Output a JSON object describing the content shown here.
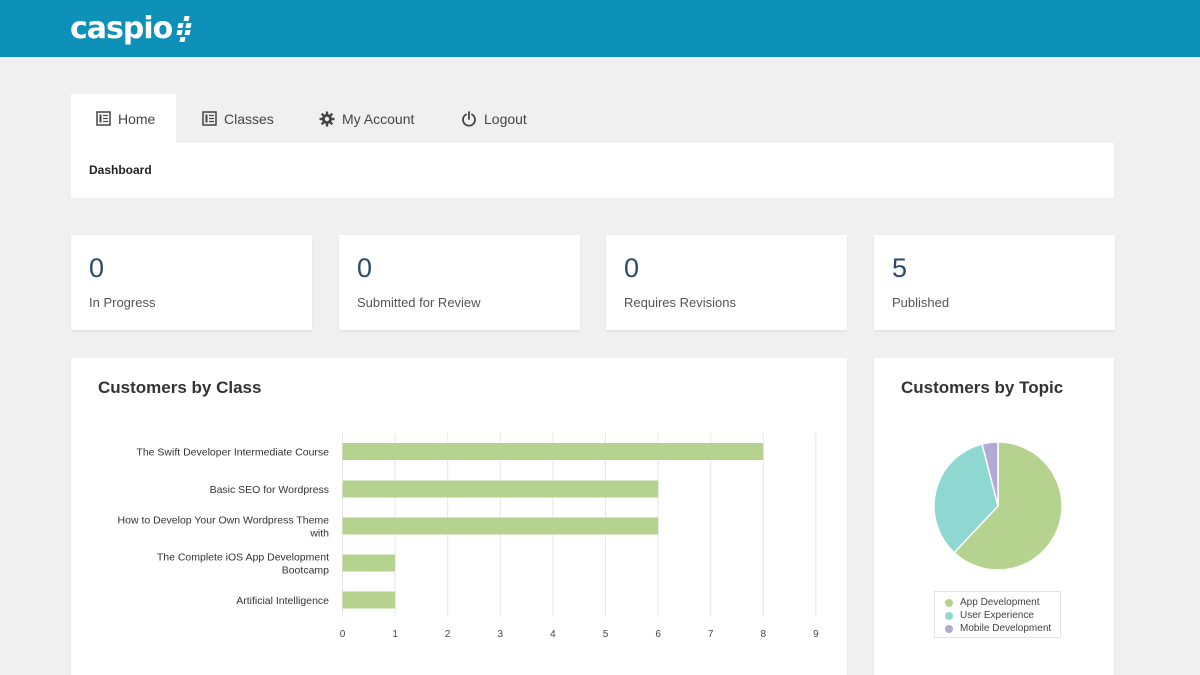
{
  "brand": {
    "logo_text": "caspio",
    "primary_color": "#0e91b8"
  },
  "nav": {
    "tabs": [
      {
        "label": "Home",
        "icon": "list-icon",
        "active": true
      },
      {
        "label": "Classes",
        "icon": "list-icon",
        "active": false
      },
      {
        "label": "My Account",
        "icon": "gear-icon",
        "active": false
      },
      {
        "label": "Logout",
        "icon": "power-icon",
        "active": false
      }
    ]
  },
  "breadcrumb": "Dashboard",
  "stats": [
    {
      "value": "0",
      "label": "In Progress"
    },
    {
      "value": "0",
      "label": "Submitted for Review"
    },
    {
      "value": "0",
      "label": "Requires Revisions"
    },
    {
      "value": "5",
      "label": "Published"
    }
  ],
  "class_panel": {
    "title": "Customers by Class"
  },
  "topic_panel": {
    "title": "Customers by Topic"
  },
  "chart_data": [
    {
      "type": "bar",
      "orientation": "horizontal",
      "title": "Customers by Class",
      "categories": [
        [
          "The Swift Developer Intermediate Course"
        ],
        [
          "Basic SEO for Wordpress"
        ],
        [
          "How to Develop Your Own Wordpress Theme",
          "with"
        ],
        [
          "The Complete iOS App Development",
          "Bootcamp"
        ],
        [
          "Artificial Intelligence"
        ]
      ],
      "values": [
        8,
        6,
        6,
        1,
        1
      ],
      "xlim": [
        0,
        9
      ],
      "ticks": [
        0,
        1,
        2,
        3,
        4,
        5,
        6,
        7,
        8,
        9
      ],
      "bar_color": "#b5d28f",
      "grid": true
    },
    {
      "type": "pie",
      "title": "Customers by Topic",
      "labels": [
        "App Development",
        "User Experience",
        "Mobile Development"
      ],
      "values": [
        62,
        34,
        4
      ],
      "colors": [
        "#b5d28f",
        "#8fd8d2",
        "#b3a9d6"
      ],
      "legend": "bottom"
    }
  ]
}
